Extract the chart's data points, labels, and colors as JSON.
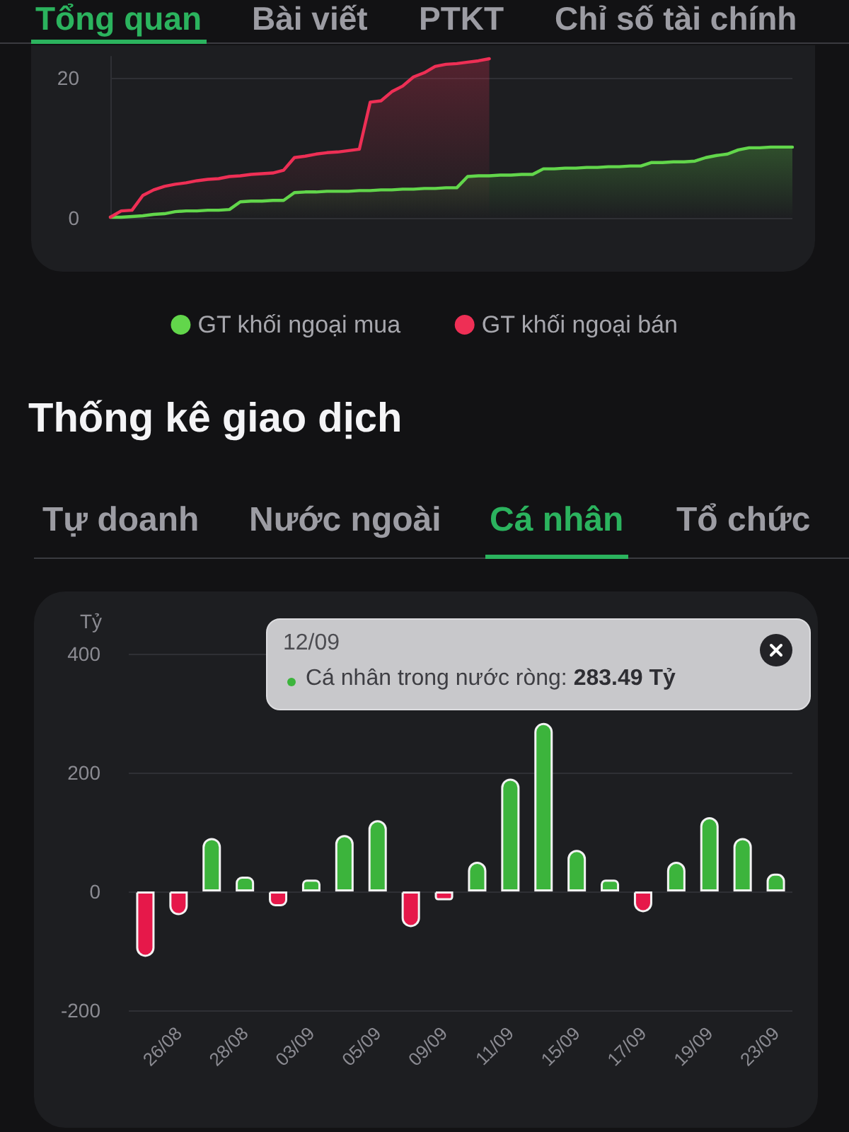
{
  "chart_data": [
    {
      "type": "area",
      "annotations": [
        "Tổng quan",
        "Bài viết",
        "PTKT",
        "Chỉ số tài chính"
      ],
      "categories": [
        null,
        null,
        null,
        null,
        null,
        null,
        null,
        null,
        null,
        null,
        null,
        null,
        null,
        null,
        null,
        null,
        null,
        null,
        null,
        null,
        null,
        null,
        null,
        null,
        null,
        null,
        null,
        null,
        null,
        null,
        null,
        null,
        null,
        null,
        null,
        null,
        null,
        null,
        null,
        null,
        null,
        null,
        null,
        null,
        null,
        null,
        null,
        null,
        null,
        null,
        null,
        null,
        null,
        null,
        null,
        null,
        null,
        null,
        null,
        null,
        null,
        null,
        null,
        null
      ],
      "series": [
        {
          "name": "GT khối ngoại mua",
          "color": "#62d64b",
          "values": [
            0.1,
            0.1,
            0.2,
            0.3,
            0.5,
            0.6,
            0.9,
            1.0,
            1.0,
            1.1,
            1.1,
            1.2,
            2.3,
            2.4,
            2.4,
            2.5,
            2.5,
            3.6,
            3.7,
            3.7,
            3.8,
            3.8,
            3.8,
            3.9,
            3.9,
            4.0,
            4.0,
            4.1,
            4.1,
            4.2,
            4.2,
            4.3,
            4.3,
            5.9,
            6.0,
            6.0,
            6.1,
            6.1,
            6.2,
            6.2,
            7.0,
            7.0,
            7.1,
            7.1,
            7.2,
            7.2,
            7.3,
            7.3,
            7.4,
            7.4,
            7.9,
            7.9,
            8.0,
            8.0,
            8.1,
            8.6,
            8.9,
            9.1,
            9.7,
            10.0,
            10.0,
            10.1,
            10.1,
            10.1
          ]
        },
        {
          "name": "GT khối ngoại bán",
          "color": "#ee2f55",
          "values": [
            0.1,
            1.0,
            1.1,
            3.2,
            4.0,
            4.5,
            4.8,
            5.0,
            5.3,
            5.5,
            5.6,
            5.9,
            6.0,
            6.2,
            6.3,
            6.4,
            6.8,
            8.6,
            8.8,
            9.1,
            9.3,
            9.4,
            9.6,
            9.8,
            16.5,
            16.7,
            18.0,
            18.8,
            20.1,
            20.7,
            21.6,
            21.9,
            22.0,
            22.2,
            22.4,
            22.7,
            null,
            null,
            null,
            null,
            null,
            null,
            null,
            null,
            null,
            null,
            null,
            null,
            null,
            null,
            null,
            null,
            null,
            null,
            null,
            null,
            null,
            null,
            null,
            null,
            null,
            null,
            null,
            null
          ]
        }
      ],
      "ylim": [
        0,
        23
      ],
      "yticks": [
        0,
        20
      ],
      "grid": "y",
      "legend": "bottom",
      "tick_labels": "y"
    },
    {
      "type": "bar",
      "title": "Thống kê giao dịch",
      "ylabel": "Tỷ",
      "annotations": [
        "Tự doanh",
        "Nước ngoài",
        "Cá nhân",
        "Tổ chức",
        "12/09",
        "Cá nhân trong nước ròng: 283.49 Tỷ"
      ],
      "categories": [
        null,
        "26/08",
        null,
        "28/08",
        null,
        "03/09",
        null,
        "05/09",
        null,
        "09/09",
        null,
        "11/09",
        null,
        "15/09",
        null,
        "17/09",
        null,
        "19/09",
        null,
        "23/09"
      ],
      "values": [
        -110,
        -40,
        90,
        25,
        -25,
        20,
        95,
        120,
        -60,
        -15,
        50,
        190,
        283.49,
        70,
        20,
        -35,
        50,
        125,
        90,
        30
      ],
      "colors": [
        "#e6184a",
        "#e6184a",
        "#3cb43c",
        "#3cb43c",
        "#e6184a",
        "#3cb43c",
        "#3cb43c",
        "#3cb43c",
        "#e6184a",
        "#e6184a",
        "#3cb43c",
        "#3cb43c",
        "#3cb43c",
        "#3cb43c",
        "#3cb43c",
        "#e6184a",
        "#3cb43c",
        "#3cb43c",
        "#3cb43c",
        "#3cb43c"
      ],
      "ylim": [
        -200,
        400
      ],
      "yticks": [
        -200,
        0,
        200,
        400
      ],
      "grid": "y"
    }
  ]
}
